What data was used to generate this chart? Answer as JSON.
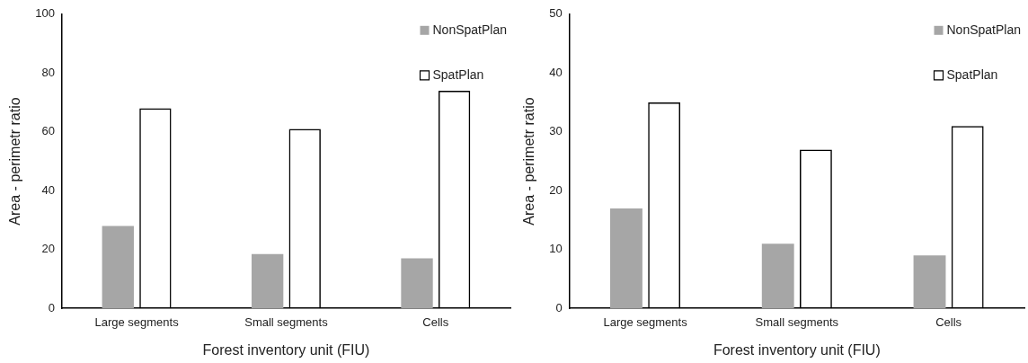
{
  "chart_data": [
    {
      "type": "bar",
      "categories": [
        "Large segments",
        "Small segments",
        "Cells"
      ],
      "xlabel": "Forest inventory unit (FIU)",
      "ylabel": "Area - perimetr ratio",
      "ylim": [
        0,
        100
      ],
      "yticks": [
        0,
        20,
        40,
        60,
        80,
        100
      ],
      "grid": false,
      "legend": "top right",
      "series": [
        {
          "name": "NonSpatPlan",
          "color": "#a6a6a6",
          "values": [
            28,
            18.5,
            17
          ]
        },
        {
          "name": "SpatPlan",
          "color": "#000000",
          "values": [
            68,
            61,
            74
          ]
        }
      ]
    },
    {
      "type": "bar",
      "categories": [
        "Large segments",
        "Small segments",
        "Cells"
      ],
      "xlabel": "Forest inventory unit (FIU)",
      "ylabel": "Area - perimetr ratio",
      "ylim": [
        0,
        50
      ],
      "yticks": [
        0,
        10,
        20,
        30,
        40,
        50
      ],
      "grid": false,
      "legend": "top right",
      "series": [
        {
          "name": "NonSpatPlan",
          "color": "#a6a6a6",
          "values": [
            17,
            11,
            9
          ]
        },
        {
          "name": "SpatPlan",
          "color": "#000000",
          "values": [
            35,
            27,
            31
          ]
        }
      ]
    }
  ]
}
